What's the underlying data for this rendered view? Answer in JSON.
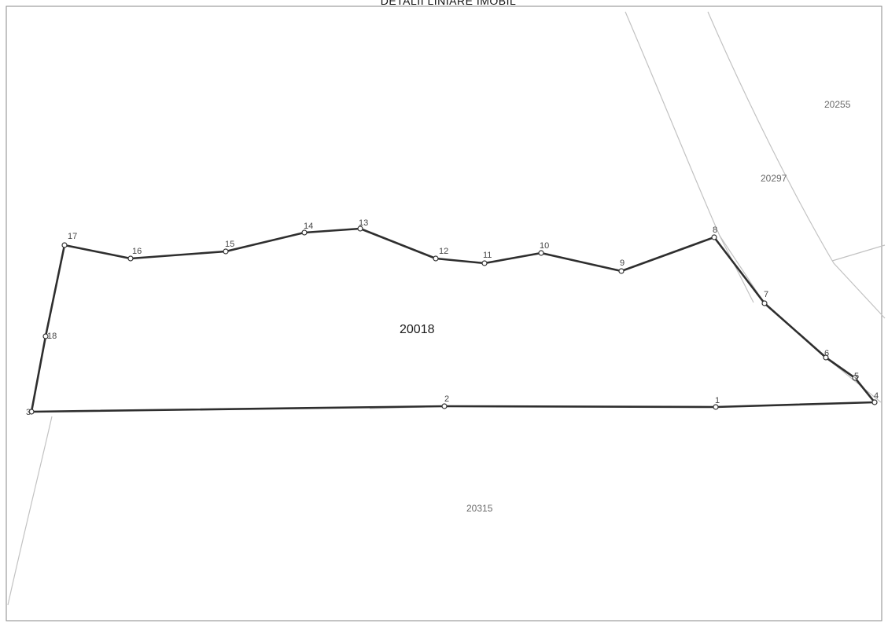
{
  "title": "DETALII LINIARE IMOBIL",
  "main_parcel": {
    "id": "20018"
  },
  "neighbor_parcels": [
    {
      "id": "20255"
    },
    {
      "id": "20297"
    },
    {
      "id": "20315"
    }
  ],
  "vertices": [
    {
      "label": "1"
    },
    {
      "label": "2"
    },
    {
      "label": "3"
    },
    {
      "label": "4"
    },
    {
      "label": "5"
    },
    {
      "label": "6"
    },
    {
      "label": "7"
    },
    {
      "label": "8"
    },
    {
      "label": "9"
    },
    {
      "label": "10"
    },
    {
      "label": "11"
    },
    {
      "label": "12"
    },
    {
      "label": "13"
    },
    {
      "label": "14"
    },
    {
      "label": "15"
    },
    {
      "label": "16"
    },
    {
      "label": "17"
    },
    {
      "label": "18"
    }
  ],
  "colors": {
    "parcel_boundary": "#2e2e2e",
    "neighbor_boundary": "#c2c2c2",
    "background": "#ffffff"
  }
}
